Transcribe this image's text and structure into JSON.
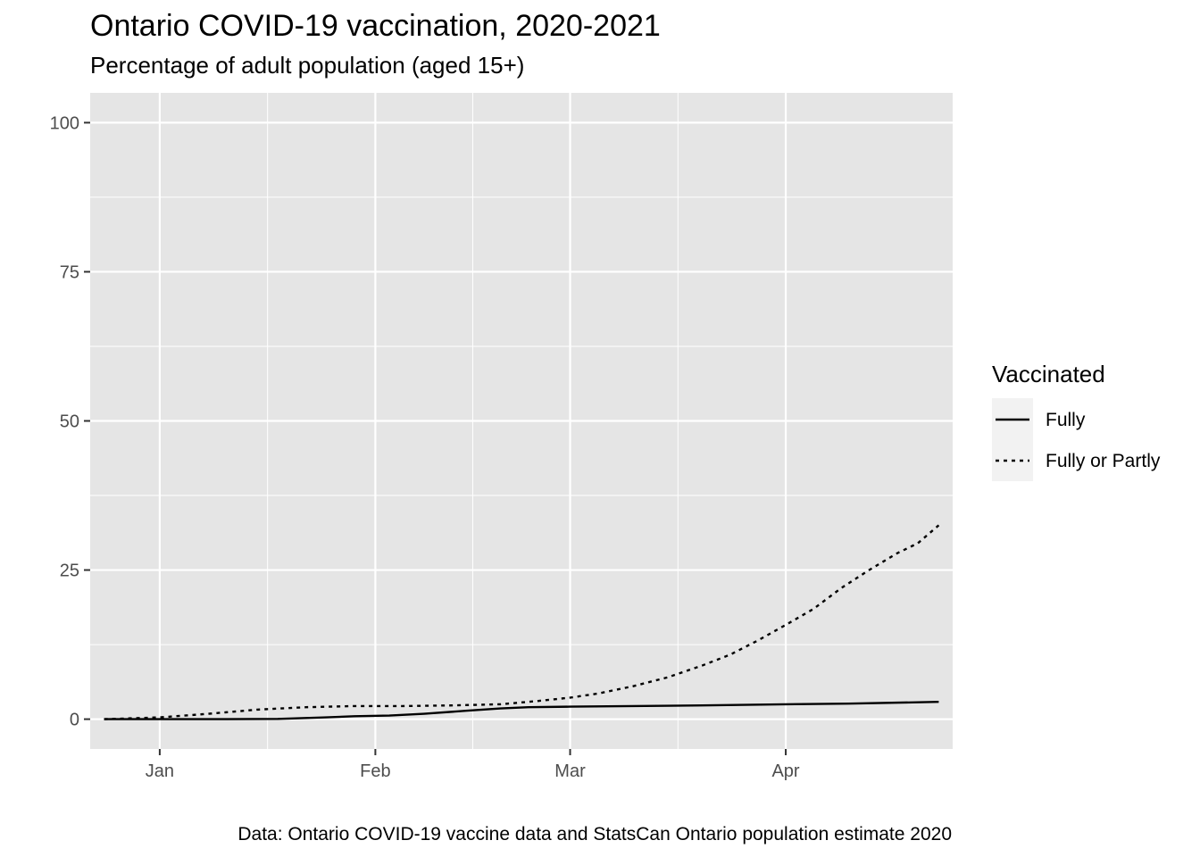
{
  "chart_data": {
    "type": "line",
    "title": "Ontario COVID-19 vaccination, 2020-2021",
    "subtitle": "Percentage of adult population (aged 15+)",
    "caption": "Data: Ontario COVID-19 vaccine data and StatsCan Ontario population estimate 2020",
    "xlabel": "",
    "ylabel": "",
    "x_axis": {
      "kind": "date",
      "range": [
        "2020-12-22",
        "2021-04-25"
      ],
      "ticks": [
        {
          "date": "2021-01-01",
          "label": "Jan"
        },
        {
          "date": "2021-02-01",
          "label": "Feb"
        },
        {
          "date": "2021-03-01",
          "label": "Mar"
        },
        {
          "date": "2021-04-01",
          "label": "Apr"
        }
      ]
    },
    "y_axis": {
      "range": [
        -5,
        105
      ],
      "ticks": [
        0,
        25,
        50,
        75,
        100
      ]
    },
    "grid": true,
    "legend": {
      "title": "Vaccinated",
      "position": "right"
    },
    "series": [
      {
        "name": "Fully",
        "line_style": "solid",
        "color": "#000000",
        "points": [
          {
            "x": "2020-12-24",
            "y": 0.0
          },
          {
            "x": "2021-01-01",
            "y": 0.0
          },
          {
            "x": "2021-01-10",
            "y": 0.0
          },
          {
            "x": "2021-01-18",
            "y": 0.05
          },
          {
            "x": "2021-01-25",
            "y": 0.3
          },
          {
            "x": "2021-01-29",
            "y": 0.5
          },
          {
            "x": "2021-02-03",
            "y": 0.6
          },
          {
            "x": "2021-02-08",
            "y": 0.9
          },
          {
            "x": "2021-02-14",
            "y": 1.4
          },
          {
            "x": "2021-02-19",
            "y": 1.8
          },
          {
            "x": "2021-02-23",
            "y": 2.0
          },
          {
            "x": "2021-03-01",
            "y": 2.1
          },
          {
            "x": "2021-03-10",
            "y": 2.2
          },
          {
            "x": "2021-03-20",
            "y": 2.3
          },
          {
            "x": "2021-04-01",
            "y": 2.5
          },
          {
            "x": "2021-04-10",
            "y": 2.6
          },
          {
            "x": "2021-04-23",
            "y": 2.9
          }
        ]
      },
      {
        "name": "Fully or Partly",
        "line_style": "dotted",
        "color": "#000000",
        "points": [
          {
            "x": "2020-12-24",
            "y": 0.0
          },
          {
            "x": "2021-01-01",
            "y": 0.3
          },
          {
            "x": "2021-01-08",
            "y": 0.9
          },
          {
            "x": "2021-01-15",
            "y": 1.6
          },
          {
            "x": "2021-01-22",
            "y": 2.0
          },
          {
            "x": "2021-01-29",
            "y": 2.2
          },
          {
            "x": "2021-02-05",
            "y": 2.2
          },
          {
            "x": "2021-02-12",
            "y": 2.3
          },
          {
            "x": "2021-02-19",
            "y": 2.5
          },
          {
            "x": "2021-02-24",
            "y": 3.0
          },
          {
            "x": "2021-03-01",
            "y": 3.6
          },
          {
            "x": "2021-03-05",
            "y": 4.3
          },
          {
            "x": "2021-03-10",
            "y": 5.5
          },
          {
            "x": "2021-03-15",
            "y": 7.0
          },
          {
            "x": "2021-03-20",
            "y": 9.0
          },
          {
            "x": "2021-03-24",
            "y": 10.8
          },
          {
            "x": "2021-03-28",
            "y": 13.2
          },
          {
            "x": "2021-04-01",
            "y": 15.8
          },
          {
            "x": "2021-04-05",
            "y": 18.5
          },
          {
            "x": "2021-04-09",
            "y": 22.0
          },
          {
            "x": "2021-04-13",
            "y": 25.0
          },
          {
            "x": "2021-04-17",
            "y": 27.8
          },
          {
            "x": "2021-04-20",
            "y": 29.5
          },
          {
            "x": "2021-04-23",
            "y": 32.5
          }
        ]
      }
    ]
  },
  "colors": {
    "panel_background": "#e5e5e5",
    "gridline": "#ffffff",
    "legend_key_background": "#f2f2f2",
    "tick_text": "#4d4d4d"
  }
}
